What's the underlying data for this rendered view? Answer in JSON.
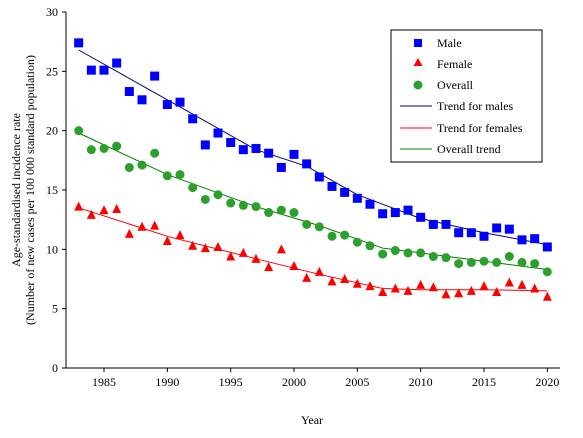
{
  "chart_data": {
    "type": "scatter",
    "xlabel": "Year",
    "ylabel": "Age-standardised incidence rate",
    "ylabel_sub": "(Number of new cases per 100 000 standard population)",
    "xlim": [
      1982,
      2021
    ],
    "ylim": [
      0,
      30
    ],
    "x_ticks": [
      1985,
      1990,
      1995,
      2000,
      2005,
      2010,
      2015,
      2020
    ],
    "y_ticks": [
      0,
      5,
      10,
      15,
      20,
      25,
      30
    ],
    "grid": false,
    "legend_position": "top-right",
    "years": [
      1983,
      1984,
      1985,
      1986,
      1987,
      1988,
      1989,
      1990,
      1991,
      1992,
      1993,
      1994,
      1995,
      1996,
      1997,
      1998,
      1999,
      2000,
      2001,
      2002,
      2003,
      2004,
      2005,
      2006,
      2007,
      2008,
      2009,
      2010,
      2011,
      2012,
      2013,
      2014,
      2015,
      2016,
      2017,
      2018,
      2019,
      2020
    ],
    "series": [
      {
        "name": "Male",
        "marker": "square",
        "color": "#0000ff",
        "values": [
          27.4,
          25.1,
          25.1,
          25.7,
          23.3,
          22.6,
          24.6,
          22.2,
          22.4,
          21.0,
          18.8,
          19.8,
          19.0,
          18.4,
          18.5,
          18.1,
          16.9,
          18.0,
          17.2,
          16.1,
          15.3,
          14.8,
          14.3,
          13.8,
          13.0,
          13.1,
          13.3,
          12.7,
          12.1,
          12.1,
          11.4,
          11.4,
          11.1,
          11.8,
          11.7,
          10.8,
          10.9,
          10.2
        ]
      },
      {
        "name": "Female",
        "marker": "triangle",
        "color": "#ff0000",
        "values": [
          13.6,
          12.9,
          13.3,
          13.4,
          11.3,
          11.9,
          12.0,
          10.7,
          11.2,
          10.3,
          10.1,
          10.2,
          9.4,
          9.7,
          9.2,
          8.5,
          10.0,
          8.6,
          7.6,
          8.1,
          7.3,
          7.5,
          7.1,
          6.9,
          6.4,
          6.7,
          6.5,
          7.0,
          6.8,
          6.2,
          6.3,
          6.5,
          6.9,
          6.4,
          7.2,
          7.0,
          6.7,
          6.0
        ]
      },
      {
        "name": "Overall",
        "marker": "circle",
        "color": "#2ca02c",
        "values": [
          20.0,
          18.4,
          18.5,
          18.7,
          16.9,
          17.1,
          18.1,
          16.2,
          16.3,
          15.2,
          14.2,
          14.6,
          13.9,
          13.7,
          13.6,
          13.1,
          13.3,
          13.1,
          12.1,
          11.9,
          11.1,
          11.2,
          10.6,
          10.3,
          9.6,
          9.9,
          9.7,
          9.7,
          9.4,
          9.3,
          8.8,
          8.9,
          9.0,
          8.9,
          9.4,
          8.9,
          8.8,
          8.1
        ]
      }
    ],
    "trends": [
      {
        "name": "Trend for males",
        "color": "#00008b",
        "points": [
          [
            1983,
            26.8
          ],
          [
            1990,
            22.6
          ],
          [
            1997,
            18.4
          ],
          [
            2001,
            17.0
          ],
          [
            2005,
            14.6
          ],
          [
            2010,
            12.6
          ],
          [
            2015,
            11.4
          ],
          [
            2020,
            10.4
          ]
        ]
      },
      {
        "name": "Trend for females",
        "color": "#ff0000",
        "points": [
          [
            1983,
            13.5
          ],
          [
            1990,
            11.1
          ],
          [
            1997,
            9.2
          ],
          [
            2002,
            7.9
          ],
          [
            2007,
            6.7
          ],
          [
            2010,
            6.6
          ],
          [
            2015,
            6.6
          ],
          [
            2020,
            6.5
          ]
        ]
      },
      {
        "name": "Overall trend",
        "color": "#008000",
        "points": [
          [
            1983,
            19.8
          ],
          [
            1990,
            16.3
          ],
          [
            1997,
            13.6
          ],
          [
            2002,
            12.0
          ],
          [
            2007,
            10.1
          ],
          [
            2010,
            9.7
          ],
          [
            2015,
            9.0
          ],
          [
            2020,
            8.3
          ]
        ]
      }
    ]
  }
}
